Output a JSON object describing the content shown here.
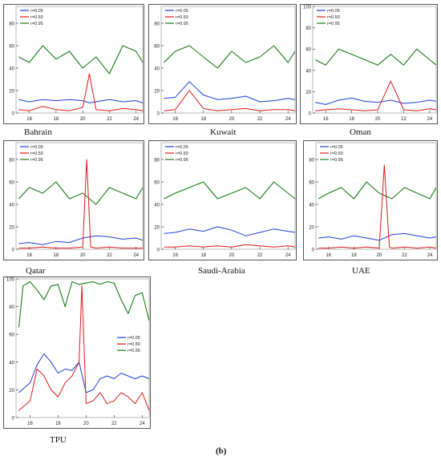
{
  "figure_label": "(b)",
  "legend": [
    "r=0.05",
    "r=0.50",
    "r=0.95"
  ],
  "colors": {
    "r005": "#1f3fd6",
    "r050": "#e01919",
    "r095": "#1a7a1a",
    "axis": "#222222",
    "frame": "#555555"
  },
  "chart_data": [
    {
      "type": "line",
      "title": "Bahrain",
      "x_tick_labels": [
        "16",
        "18",
        "20",
        "22",
        "24"
      ],
      "y_tick_labels": [
        "0",
        "20",
        "40",
        "60",
        "80"
      ],
      "xlim": [
        15,
        24.5
      ],
      "ylim": [
        0,
        95
      ],
      "series": [
        {
          "name": "r=0.05",
          "x": [
            15.2,
            16,
            17,
            18,
            19,
            20,
            20.5,
            21,
            22,
            23,
            24,
            24.5
          ],
          "y": [
            12,
            10,
            12,
            11,
            12,
            11,
            9,
            10,
            12,
            10,
            11,
            9
          ]
        },
        {
          "name": "r=0.50",
          "x": [
            15.2,
            16,
            17,
            18,
            19,
            20,
            20.5,
            21,
            22,
            23,
            24,
            24.5
          ],
          "y": [
            3,
            2,
            6,
            3,
            2,
            5,
            35,
            3,
            2,
            4,
            3,
            2
          ]
        },
        {
          "name": "r=0.95",
          "x": [
            15.2,
            16,
            17,
            18,
            19,
            20,
            21,
            22,
            23,
            24,
            24.5
          ],
          "y": [
            50,
            45,
            60,
            48,
            55,
            40,
            50,
            35,
            60,
            55,
            45
          ]
        }
      ]
    },
    {
      "type": "line",
      "title": "Kuwait",
      "x_tick_labels": [
        "16",
        "18",
        "20",
        "22",
        "24"
      ],
      "y_tick_labels": [
        "0",
        "20",
        "40",
        "60",
        "80"
      ],
      "xlim": [
        15,
        24.5
      ],
      "ylim": [
        0,
        95
      ],
      "series": [
        {
          "name": "r=0.05",
          "x": [
            15.2,
            16,
            17,
            18,
            19,
            20,
            21,
            22,
            23,
            24,
            24.5
          ],
          "y": [
            13,
            14,
            28,
            16,
            12,
            13,
            15,
            10,
            11,
            13,
            12
          ]
        },
        {
          "name": "r=0.50",
          "x": [
            15.2,
            16,
            17,
            18,
            19,
            20,
            21,
            22,
            23,
            24,
            24.5
          ],
          "y": [
            2,
            3,
            20,
            4,
            2,
            3,
            4,
            2,
            3,
            3,
            2
          ]
        },
        {
          "name": "r=0.95",
          "x": [
            15.2,
            16,
            17,
            18,
            19,
            20,
            21,
            22,
            23,
            24,
            24.5
          ],
          "y": [
            45,
            55,
            60,
            50,
            40,
            55,
            45,
            50,
            60,
            45,
            55
          ]
        }
      ]
    },
    {
      "type": "line",
      "title": "Oman",
      "x_tick_labels": [
        "16",
        "18",
        "20",
        "22",
        "24"
      ],
      "y_tick_labels": [
        "0",
        "20",
        "40",
        "60",
        "80",
        "100"
      ],
      "xlim": [
        15,
        24.5
      ],
      "ylim": [
        0,
        100
      ],
      "series": [
        {
          "name": "r=0.05",
          "x": [
            15.2,
            16,
            17,
            18,
            19,
            20,
            21,
            22,
            23,
            24,
            24.5
          ],
          "y": [
            10,
            8,
            12,
            14,
            11,
            10,
            12,
            9,
            10,
            12,
            11
          ]
        },
        {
          "name": "r=0.50",
          "x": [
            15.2,
            16,
            17,
            18,
            19,
            20,
            21,
            22,
            23,
            24,
            24.5
          ],
          "y": [
            2,
            3,
            4,
            3,
            2,
            3,
            30,
            3,
            2,
            4,
            3
          ]
        },
        {
          "name": "r=0.95",
          "x": [
            15.2,
            16,
            17,
            18,
            19,
            20,
            21,
            22,
            23,
            24,
            24.5
          ],
          "y": [
            50,
            45,
            60,
            55,
            50,
            45,
            55,
            45,
            60,
            50,
            45
          ]
        }
      ]
    },
    {
      "type": "line",
      "title": "Qatar",
      "x_tick_labels": [
        "16",
        "18",
        "20",
        "22",
        "24"
      ],
      "y_tick_labels": [
        "0",
        "20",
        "40",
        "60",
        "80"
      ],
      "xlim": [
        15,
        24.5
      ],
      "ylim": [
        0,
        95
      ],
      "series": [
        {
          "name": "r=0.05",
          "x": [
            15.2,
            16,
            17,
            18,
            19,
            20,
            21,
            22,
            23,
            24,
            24.5
          ],
          "y": [
            5,
            6,
            4,
            7,
            6,
            10,
            12,
            11,
            9,
            10,
            8
          ]
        },
        {
          "name": "r=0.50",
          "x": [
            15.2,
            16,
            17,
            18,
            19,
            20,
            20.3,
            20.6,
            21,
            22,
            23,
            24,
            24.5
          ],
          "y": [
            1,
            1,
            2,
            1,
            1,
            2,
            80,
            2,
            1,
            2,
            1,
            1,
            1
          ]
        },
        {
          "name": "r=0.95",
          "x": [
            15.2,
            16,
            17,
            18,
            19,
            20,
            21,
            22,
            23,
            24,
            24.5
          ],
          "y": [
            45,
            55,
            50,
            60,
            45,
            50,
            40,
            55,
            50,
            45,
            55
          ]
        }
      ]
    },
    {
      "type": "line",
      "title": "Saudi-Arabia",
      "x_tick_labels": [
        "16",
        "18",
        "20",
        "22",
        "24"
      ],
      "y_tick_labels": [
        "0",
        "20",
        "40",
        "60",
        "80"
      ],
      "xlim": [
        15,
        24.5
      ],
      "ylim": [
        0,
        95
      ],
      "series": [
        {
          "name": "r=0.05",
          "x": [
            15.2,
            16,
            17,
            18,
            19,
            20,
            21,
            22,
            23,
            24,
            24.5
          ],
          "y": [
            14,
            15,
            18,
            16,
            20,
            17,
            12,
            15,
            18,
            16,
            15
          ]
        },
        {
          "name": "r=0.50",
          "x": [
            15.2,
            16,
            17,
            18,
            19,
            20,
            21,
            22,
            23,
            24,
            24.5
          ],
          "y": [
            2,
            2,
            3,
            2,
            3,
            2,
            4,
            3,
            2,
            3,
            2
          ]
        },
        {
          "name": "r=0.95",
          "x": [
            15.2,
            16,
            17,
            18,
            19,
            20,
            21,
            22,
            23,
            24,
            24.5
          ],
          "y": [
            45,
            50,
            55,
            60,
            45,
            50,
            55,
            45,
            60,
            50,
            45
          ]
        }
      ]
    },
    {
      "type": "line",
      "title": "UAE",
      "x_tick_labels": [
        "16",
        "18",
        "20",
        "22",
        "24"
      ],
      "y_tick_labels": [
        "0",
        "20",
        "40",
        "60",
        "80"
      ],
      "xlim": [
        15,
        24.5
      ],
      "ylim": [
        0,
        95
      ],
      "series": [
        {
          "name": "r=0.05",
          "x": [
            15.2,
            16,
            17,
            18,
            19,
            20,
            21,
            22,
            23,
            24,
            24.5
          ],
          "y": [
            10,
            11,
            9,
            12,
            10,
            8,
            13,
            14,
            12,
            10,
            11
          ]
        },
        {
          "name": "r=0.50",
          "x": [
            15.2,
            16,
            17,
            18,
            19,
            20,
            20.4,
            20.8,
            21,
            22,
            23,
            24,
            24.5
          ],
          "y": [
            1,
            1,
            2,
            1,
            2,
            1,
            75,
            2,
            1,
            2,
            1,
            2,
            1
          ]
        },
        {
          "name": "r=0.95",
          "x": [
            15.2,
            16,
            17,
            18,
            19,
            20,
            21,
            22,
            23,
            24,
            24.5
          ],
          "y": [
            45,
            50,
            55,
            45,
            60,
            50,
            45,
            55,
            50,
            45,
            55
          ]
        }
      ]
    },
    {
      "type": "line",
      "title": "TPU",
      "x_tick_labels": [
        "16",
        "18",
        "20",
        "22",
        "24"
      ],
      "y_tick_labels": [
        "0",
        "20",
        "40",
        "60",
        "80",
        "100"
      ],
      "xlim": [
        15,
        24.5
      ],
      "ylim": [
        0,
        100
      ],
      "series": [
        {
          "name": "r=0.05",
          "x": [
            15.2,
            16,
            16.5,
            17,
            17.5,
            18,
            18.5,
            19,
            19.5,
            20,
            20.5,
            21,
            21.5,
            22,
            22.5,
            23,
            23.5,
            24,
            24.5
          ],
          "y": [
            18,
            25,
            38,
            46,
            40,
            32,
            35,
            34,
            40,
            18,
            20,
            28,
            30,
            28,
            32,
            30,
            28,
            30,
            28
          ]
        },
        {
          "name": "r=0.50",
          "x": [
            15.2,
            16,
            16.5,
            17,
            17.5,
            18,
            18.5,
            19,
            19.5,
            19.7,
            20,
            20.5,
            21,
            21.5,
            22,
            22.5,
            23,
            23.5,
            24,
            24.5
          ],
          "y": [
            5,
            12,
            35,
            30,
            20,
            15,
            25,
            30,
            40,
            95,
            10,
            12,
            18,
            10,
            12,
            18,
            15,
            10,
            18,
            5
          ]
        },
        {
          "name": "r=0.95",
          "x": [
            15.2,
            15.5,
            16,
            16.5,
            17,
            17.5,
            18,
            18.5,
            19,
            19.5,
            20,
            20.5,
            21,
            21.5,
            22,
            22.5,
            23,
            23.5,
            24,
            24.5
          ],
          "y": [
            65,
            95,
            98,
            92,
            85,
            95,
            96,
            80,
            98,
            96,
            97,
            98,
            96,
            98,
            97,
            85,
            75,
            88,
            90,
            70
          ]
        }
      ]
    }
  ]
}
